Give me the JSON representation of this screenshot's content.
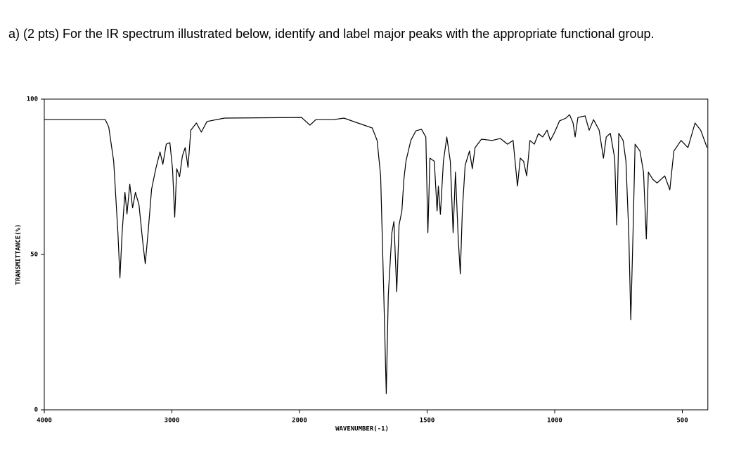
{
  "question": "a) (2 pts) For the IR spectrum illustrated below, identify and label major peaks with the appropriate functional group.",
  "chart_data": {
    "type": "line",
    "xlabel": "WAVENUMBER(-1)",
    "ylabel": "TRANSMITTANCE(%)",
    "xlim": [
      4000,
      400
    ],
    "xticks": [
      4000,
      3000,
      2000,
      1500,
      1000,
      500
    ],
    "ylim": [
      0,
      100
    ],
    "yticks": [
      0,
      50,
      100
    ],
    "color": "#000000",
    "x": [
      4000,
      3522,
      3495,
      3456,
      3423,
      3407,
      3390,
      3368,
      3352,
      3330,
      3308,
      3286,
      3258,
      3231,
      3209,
      3187,
      3159,
      3126,
      3093,
      3071,
      3044,
      3016,
      2995,
      2978,
      2962,
      2940,
      2918,
      2896,
      2874,
      2852,
      2808,
      2769,
      2725,
      2588,
      1992,
      1959,
      1936,
      1867,
      1826,
      1771,
      1715,
      1696,
      1682,
      1671,
      1660,
      1652,
      1638,
      1630,
      1619,
      1610,
      1599,
      1591,
      1583,
      1564,
      1544,
      1522,
      1505,
      1497,
      1489,
      1472,
      1461,
      1456,
      1448,
      1436,
      1423,
      1409,
      1398,
      1389,
      1378,
      1370,
      1362,
      1351,
      1334,
      1323,
      1312,
      1287,
      1246,
      1213,
      1185,
      1163,
      1146,
      1135,
      1122,
      1110,
      1097,
      1080,
      1064,
      1047,
      1030,
      1017,
      1000,
      981,
      956,
      942,
      928,
      920,
      909,
      881,
      865,
      848,
      826,
      809,
      798,
      782,
      765,
      757,
      749,
      732,
      721,
      710,
      702,
      693,
      685,
      666,
      652,
      641,
      633,
      616,
      599,
      569,
      549,
      533,
      505,
      478,
      450,
      428,
      403
    ],
    "values": [
      93.4,
      93.4,
      91,
      80,
      57,
      42.5,
      57,
      70,
      63,
      72.6,
      65,
      70,
      66,
      55,
      47,
      57,
      71,
      77.6,
      83,
      79,
      85.5,
      86,
      77.6,
      62,
      77.6,
      75,
      81.7,
      84.4,
      78,
      90,
      92.3,
      89.4,
      92.8,
      93.9,
      94.1,
      91.6,
      93.4,
      93.4,
      93.9,
      92.3,
      90.7,
      86.7,
      75.3,
      41.4,
      5.2,
      37,
      57,
      60.6,
      38,
      59.5,
      64,
      74.2,
      80,
      86.7,
      89.8,
      90.3,
      87.8,
      57,
      81,
      80,
      64,
      72,
      62.9,
      80,
      87.8,
      80,
      57,
      76.5,
      55,
      43.7,
      64,
      78.7,
      83.3,
      77.6,
      84.4,
      87.1,
      86.7,
      87.3,
      85.5,
      86.7,
      72,
      81,
      80,
      75.3,
      86.7,
      85.5,
      88.9,
      87.8,
      90,
      86.7,
      89.4,
      93,
      93.9,
      95,
      92.3,
      87.8,
      94.1,
      94.6,
      90,
      93.4,
      90,
      81,
      87.8,
      89,
      81,
      59.5,
      89,
      86.7,
      80,
      57,
      29,
      57,
      85.5,
      83.3,
      76.5,
      55,
      76.5,
      74.2,
      73,
      75.3,
      70.8,
      83.3,
      86.7,
      84.4,
      92.3,
      90,
      84.4
    ]
  }
}
